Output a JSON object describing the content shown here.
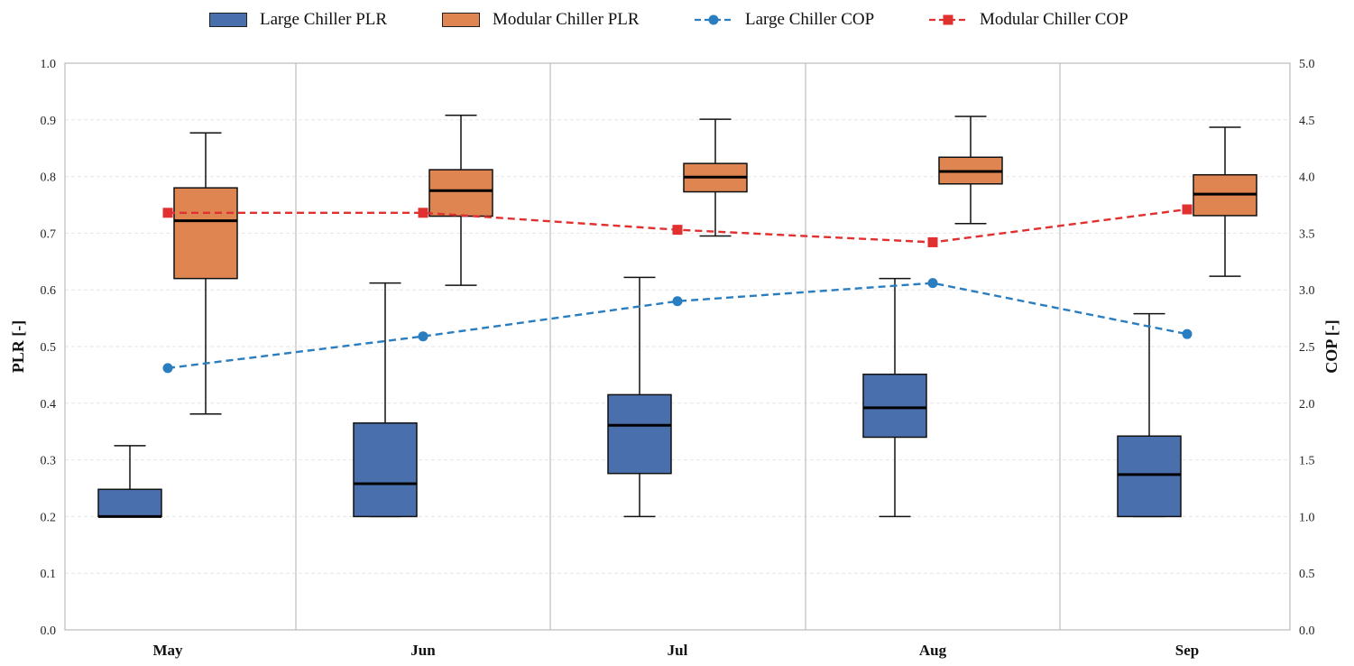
{
  "chart_data": {
    "type": "box",
    "categories": [
      "May",
      "Jun",
      "Jul",
      "Aug",
      "Sep"
    ],
    "left_axis": {
      "label": "PLR [-]",
      "ylim": [
        0.0,
        1.0
      ],
      "ticks": [
        "0.0",
        "0.1",
        "0.2",
        "0.3",
        "0.4",
        "0.5",
        "0.6",
        "0.7",
        "0.8",
        "0.9",
        "1.0"
      ]
    },
    "right_axis": {
      "label": "COP [-]",
      "ylim": [
        0.0,
        5.0
      ],
      "ticks": [
        "0.0",
        "0.5",
        "1.0",
        "1.5",
        "2.0",
        "2.5",
        "3.0",
        "3.5",
        "4.0",
        "4.5",
        "5.0"
      ]
    },
    "legend": [
      {
        "label": "Large Chiller PLR",
        "kind": "box",
        "color": "#4a6fad"
      },
      {
        "label": "Modular Chiller PLR",
        "kind": "box",
        "color": "#de8552"
      },
      {
        "label": "Large Chiller COP",
        "kind": "line-circle",
        "color": "#2a7ec0"
      },
      {
        "label": "Modular Chiller COP",
        "kind": "line-square",
        "color": "#e03030"
      }
    ],
    "box_series": [
      {
        "name": "Large Chiller PLR",
        "color": "#4a6fad",
        "boxes": [
          {
            "whislo": 0.2,
            "q1": 0.2,
            "med": 0.2,
            "q3": 0.248,
            "whishi": 0.325
          },
          {
            "whislo": 0.2,
            "q1": 0.2,
            "med": 0.258,
            "q3": 0.365,
            "whishi": 0.612
          },
          {
            "whislo": 0.2,
            "q1": 0.276,
            "med": 0.361,
            "q3": 0.415,
            "whishi": 0.622
          },
          {
            "whislo": 0.2,
            "q1": 0.34,
            "med": 0.392,
            "q3": 0.451,
            "whishi": 0.62
          },
          {
            "whislo": 0.2,
            "q1": 0.2,
            "med": 0.274,
            "q3": 0.342,
            "whishi": 0.558
          }
        ]
      },
      {
        "name": "Modular Chiller PLR",
        "color": "#de8552",
        "boxes": [
          {
            "whislo": 0.381,
            "q1": 0.62,
            "med": 0.722,
            "q3": 0.78,
            "whishi": 0.877
          },
          {
            "whislo": 0.608,
            "q1": 0.73,
            "med": 0.775,
            "q3": 0.812,
            "whishi": 0.908
          },
          {
            "whislo": 0.695,
            "q1": 0.773,
            "med": 0.799,
            "q3": 0.823,
            "whishi": 0.901
          },
          {
            "whislo": 0.717,
            "q1": 0.787,
            "med": 0.809,
            "q3": 0.834,
            "whishi": 0.906
          },
          {
            "whislo": 0.624,
            "q1": 0.731,
            "med": 0.769,
            "q3": 0.803,
            "whishi": 0.887
          }
        ]
      }
    ],
    "line_series": [
      {
        "name": "Large Chiller COP",
        "axis": "right",
        "color": "#2a7ec0",
        "marker": "circle",
        "values": [
          2.31,
          2.59,
          2.9,
          3.06,
          2.61
        ]
      },
      {
        "name": "Modular Chiller COP",
        "axis": "right",
        "color": "#e03030",
        "marker": "square",
        "values": [
          3.68,
          3.68,
          3.53,
          3.42,
          3.71
        ]
      }
    ]
  }
}
